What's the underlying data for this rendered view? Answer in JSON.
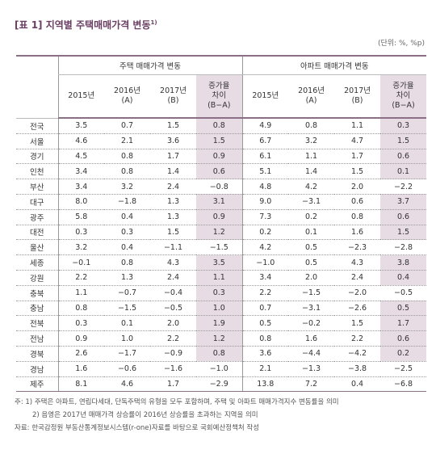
{
  "header": {
    "title": "[표 1] 지역별 주택매매가격 변동",
    "title_superscript": "1)",
    "unit": "(단위: %, %p)"
  },
  "table": {
    "groups": [
      "주택 매매가격 변동",
      "아파트 매매가격 변동"
    ],
    "columns": [
      [
        "2015년"
      ],
      [
        "2016년",
        "(A)"
      ],
      [
        "2017년",
        "(B)"
      ],
      [
        "증가율",
        "차이",
        "(B−A)"
      ]
    ],
    "rows": [
      [
        "전국",
        "3.5",
        "0.7",
        "1.5",
        "0.8",
        "4.9",
        "0.8",
        "1.1",
        "0.3"
      ],
      [
        "서울",
        "4.6",
        "2.1",
        "3.6",
        "1.5",
        "6.7",
        "3.2",
        "4.7",
        "1.5"
      ],
      [
        "경기",
        "4.5",
        "0.8",
        "1.7",
        "0.9",
        "6.1",
        "1.1",
        "1.7",
        "0.6"
      ],
      [
        "인천",
        "3.4",
        "0.8",
        "1.4",
        "0.6",
        "5.1",
        "1.4",
        "1.5",
        "0.1"
      ],
      [
        "부산",
        "3.4",
        "3.2",
        "2.4",
        "−0.8",
        "4.8",
        "4.2",
        "2.0",
        "−2.2"
      ],
      [
        "대구",
        "8.0",
        "−1.8",
        "1.3",
        "3.1",
        "9.0",
        "−3.1",
        "0.6",
        "3.7"
      ],
      [
        "광주",
        "5.8",
        "0.4",
        "1.3",
        "0.9",
        "7.3",
        "0.2",
        "0.8",
        "0.6"
      ],
      [
        "대전",
        "0.3",
        "0.3",
        "1.5",
        "1.2",
        "0.2",
        "0.1",
        "1.6",
        "1.5"
      ],
      [
        "울산",
        "3.2",
        "0.4",
        "−1.1",
        "−1.5",
        "4.2",
        "0.5",
        "−2.3",
        "−2.8"
      ],
      [
        "세종",
        "−0.1",
        "0.8",
        "4.3",
        "3.5",
        "−1.0",
        "0.5",
        "4.3",
        "3.8"
      ],
      [
        "강원",
        "2.2",
        "1.3",
        "2.4",
        "1.1",
        "3.4",
        "2.0",
        "2.4",
        "0.4"
      ],
      [
        "충북",
        "1.1",
        "−0.7",
        "−0.4",
        "0.3",
        "2.2",
        "−1.5",
        "−2.0",
        "−0.5"
      ],
      [
        "충남",
        "0.8",
        "−1.5",
        "−0.5",
        "1.0",
        "0.7",
        "−3.1",
        "−2.6",
        "0.5"
      ],
      [
        "전북",
        "0.3",
        "0.1",
        "2.0",
        "1.9",
        "0.5",
        "−0.2",
        "1.5",
        "1.7"
      ],
      [
        "전남",
        "0.9",
        "1.0",
        "2.2",
        "1.2",
        "0.8",
        "1.6",
        "2.2",
        "0.6"
      ],
      [
        "경북",
        "2.6",
        "−1.7",
        "−0.9",
        "0.8",
        "3.6",
        "−4.4",
        "−4.2",
        "0.2"
      ],
      [
        "경남",
        "1.6",
        "−0.6",
        "−1.6",
        "−1.0",
        "2.1",
        "−1.3",
        "−3.8",
        "−2.5"
      ],
      [
        "제주",
        "8.1",
        "4.6",
        "1.7",
        "−2.9",
        "13.8",
        "7.2",
        "0.4",
        "−6.8"
      ]
    ]
  },
  "notes": {
    "label": "주:",
    "items": [
      "1) 주택은 아파트, 연립다세대, 단독주택의 유형을 모두 포함하며, 주택 및 아파트 매매가격지수 변동률을 의미",
      "2) 음영은 2017년 매매가격 상승률이 2016년 상승률을 초과하는 지역을 의미"
    ]
  },
  "source": "자료: 한국감정원 부동산통계정보시스템(r-one)자료를 바탕으로 국회예산정책처 작성"
}
